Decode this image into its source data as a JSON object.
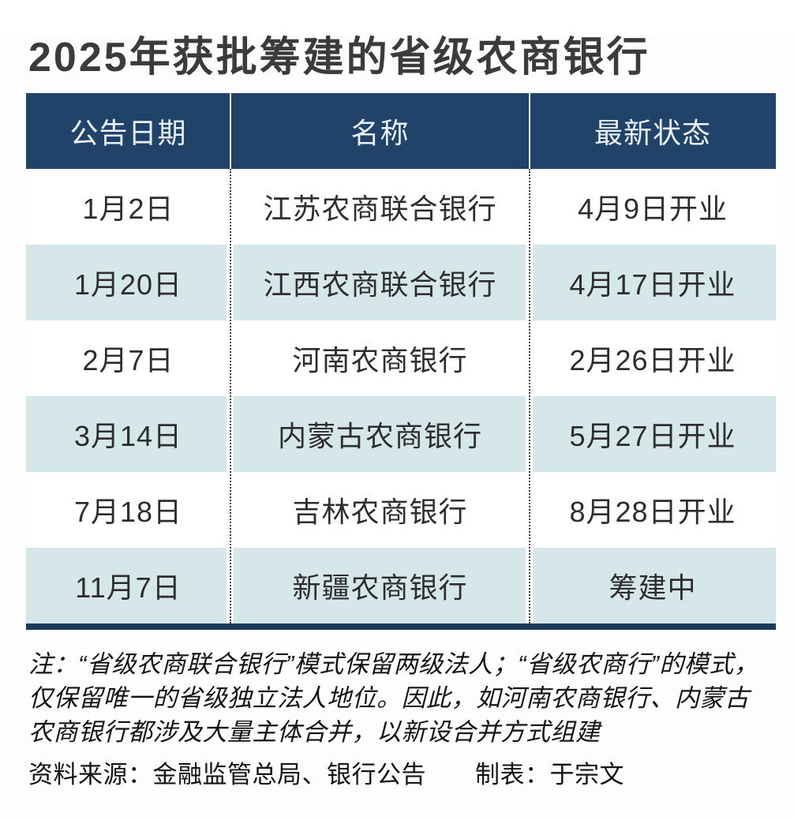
{
  "chart_data": {
    "type": "table",
    "title": "2025年获批筹建的省级农商银行",
    "columns": [
      "公告日期",
      "名称",
      "最新状态"
    ],
    "rows": [
      [
        "1月2日",
        "江苏农商联合银行",
        "4月9日开业"
      ],
      [
        "1月20日",
        "江西农商联合银行",
        "4月17日开业"
      ],
      [
        "2月7日",
        "河南农商银行",
        "2月26日开业"
      ],
      [
        "3月14日",
        "内蒙古农商银行",
        "5月27日开业"
      ],
      [
        "7月18日",
        "吉林农商银行",
        "8月28日开业"
      ],
      [
        "11月7日",
        "新疆农商银行",
        "筹建中"
      ]
    ],
    "note": "注：“省级农商联合银行”模式保留两级法人；“省级农商行”的模式，\n仅保留唯一的省级独立法人地位。因此，如河南农商银行、内蒙古\n农商银行都涉及大量主体合并，以新设合并方式组建",
    "source": "资料来源：金融监管总局、银行公告",
    "credit": "制表：于宗文",
    "layout": {
      "header_position": "top",
      "zebra_striping": true,
      "column_separators": "white solid in header, dotted in body"
    },
    "colors": {
      "header_bg": "#21436a",
      "header_text": "#e9f1f8",
      "row_bg": "#ffffff",
      "row_alt_bg": "#d6e7ea",
      "bottom_bar": "#1c3a5c",
      "title_text": "#3b3b3b",
      "body_text": "#2d2d2d"
    }
  }
}
